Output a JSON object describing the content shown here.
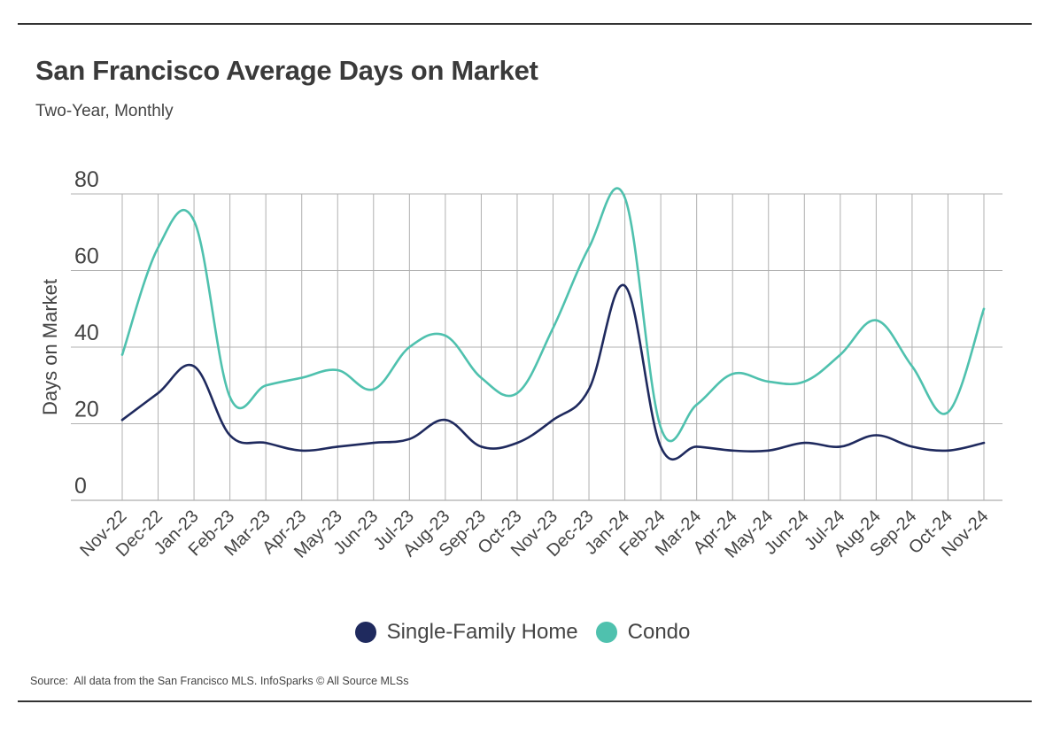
{
  "colors": {
    "single_family": "#1f2a5e",
    "condo": "#4fc1ae",
    "grid": "#b0b0b0",
    "text": "#444444"
  },
  "source_text": "Source:  All data from the San Francisco MLS. InfoSparks © All Source MLSs",
  "chart_data": {
    "type": "line",
    "title": "San Francisco Average Days on Market",
    "subtitle": "Two-Year, Monthly",
    "xlabel": "",
    "ylabel": "Days on Market",
    "ylim": [
      0,
      80
    ],
    "yticks": [
      0,
      20,
      40,
      60,
      80
    ],
    "grid": true,
    "legend_position": "bottom",
    "categories": [
      "Nov-22",
      "Dec-22",
      "Jan-23",
      "Feb-23",
      "Mar-23",
      "Apr-23",
      "May-23",
      "Jun-23",
      "Jul-23",
      "Aug-23",
      "Sep-23",
      "Oct-23",
      "Nov-23",
      "Dec-23",
      "Jan-24",
      "Feb-24",
      "Mar-24",
      "Apr-24",
      "May-24",
      "Jun-24",
      "Jul-24",
      "Aug-24",
      "Sep-24",
      "Oct-24",
      "Nov-24"
    ],
    "series": [
      {
        "name": "Single-Family Home",
        "color": "#1f2a5e",
        "values": [
          21,
          28,
          35,
          17,
          15,
          13,
          14,
          15,
          16,
          21,
          14,
          15,
          21,
          29,
          56,
          14,
          14,
          13,
          13,
          15,
          14,
          17,
          14,
          13,
          15
        ]
      },
      {
        "name": "Condo",
        "color": "#4fc1ae",
        "values": [
          38,
          66,
          73,
          27,
          30,
          32,
          34,
          29,
          40,
          43,
          32,
          28,
          45,
          66,
          79,
          19,
          25,
          33,
          31,
          31,
          38,
          47,
          35,
          23,
          50
        ]
      }
    ]
  }
}
